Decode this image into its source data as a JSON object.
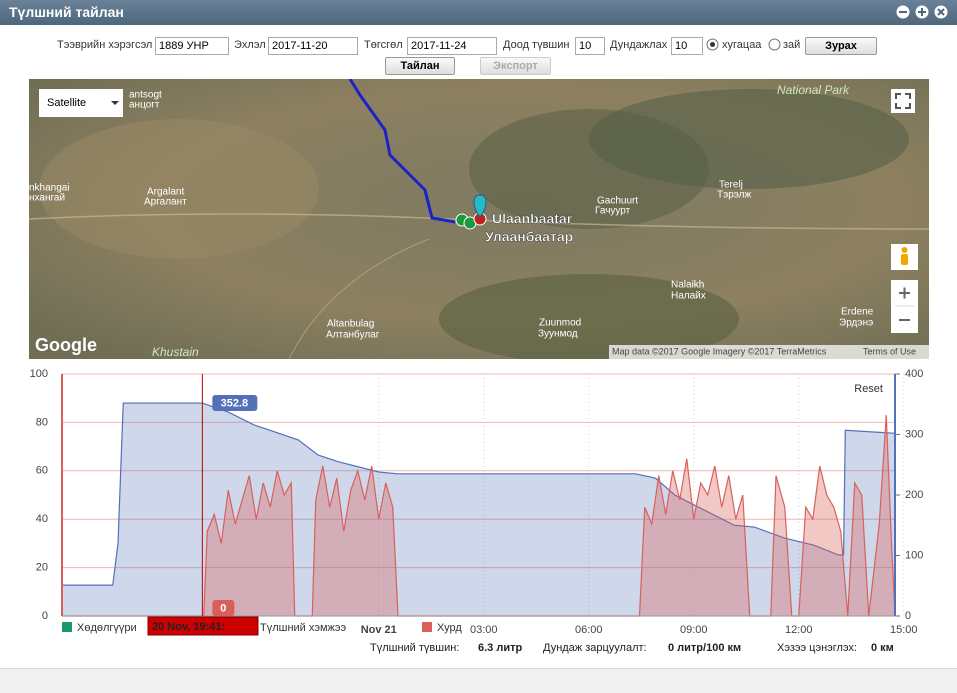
{
  "window": {
    "title": "Түлшний тайлан"
  },
  "form": {
    "vehicle_label": "Тээврийн хэрэгсэл",
    "vehicle": "1889 УНР",
    "start_label": "Эхлэл",
    "start": "2017-11-20",
    "end_label": "Төгсгөл",
    "end": "2017-11-24",
    "min_label": "Доод түвшин",
    "min": "10",
    "avg_label": "Дундажлах",
    "avg": "10",
    "radio_time": "хугацаа",
    "radio_dist": "зай",
    "draw_button": "Зурах",
    "report_button": "Тайлан",
    "export_button": "Экспорт"
  },
  "map": {
    "map_type": "Satellite",
    "labels": [
      "antsogt",
      "анцогт",
      "nkhangai",
      "нхангай",
      "Argalant",
      "Аргалант",
      "Ulaanbaatar",
      "Улаанбаатар",
      "Gachuurt",
      "Гачуурт",
      "Terelj",
      "Тэрэлж",
      "Nalaikh",
      "Налайх",
      "Erdene",
      "Эрдэнэ",
      "Altanbulag",
      "Алтанбулаг",
      "Zuunmod",
      "Зуунмод",
      "Khustain",
      "National Park"
    ],
    "logo": "Google",
    "attribution": "Map data ©2017 Google Imagery ©2017 TerraMetrics",
    "terms": "Terms of Use"
  },
  "chart_data": {
    "type": "line",
    "reset": "Reset",
    "xlim": [
      -9.05,
      14.75
    ],
    "xticks": [
      {
        "value": 0,
        "label": "Nov 21"
      },
      {
        "value": 3,
        "label": "03:00"
      },
      {
        "value": 6,
        "label": "06:00"
      },
      {
        "value": 9,
        "label": "09:00"
      },
      {
        "value": 12,
        "label": "12:00"
      },
      {
        "value": 15,
        "label": "15:00"
      }
    ],
    "ylim": [
      0,
      100
    ],
    "yticks": [
      0,
      20,
      40,
      60,
      80,
      100
    ],
    "y2lim": [
      0,
      400
    ],
    "y2ticks": [
      0,
      100,
      200,
      300,
      400
    ],
    "grid": true,
    "crosshair": -5.04,
    "tooltip": {
      "time": "20 Nov, 19:41:",
      "fuel": "352.8",
      "speed": "0"
    },
    "series": [
      {
        "name": "Хөдөлгүүри",
        "color": "#1a9a6a",
        "x": [],
        "values": []
      },
      {
        "name": "Түлшний хэмжээ",
        "color": "#5470b8",
        "axis": "y2",
        "x": [
          -9.05,
          -7.6,
          -7.45,
          -7.3,
          -5.04,
          -4.3,
          -3.57,
          -2.3,
          -1.73,
          -1.16,
          0,
          0.54,
          7.33,
          7.9,
          8.46,
          9.03,
          10.16,
          10.73,
          11.58,
          12.43,
          13.13,
          13.28,
          13.33,
          14.75
        ],
        "values": [
          51,
          51,
          120,
          352,
          352,
          337,
          316,
          291,
          266,
          255,
          238,
          235,
          235,
          228,
          200,
          183,
          150,
          147,
          129,
          117,
          101,
          101,
          307,
          302
        ]
      },
      {
        "name": "Хурд",
        "color": "#d9605a",
        "x": [
          -9.05,
          -5.0,
          -4.9,
          -4.7,
          -4.5,
          -4.3,
          -4.1,
          -3.9,
          -3.7,
          -3.5,
          -3.3,
          -3.1,
          -2.9,
          -2.7,
          -2.5,
          -2.4,
          -1.9,
          -1.8,
          -1.6,
          -1.4,
          -1.2,
          -1.0,
          -0.8,
          -0.6,
          -0.4,
          -0.2,
          0.0,
          0.2,
          0.4,
          0.55,
          7.45,
          7.6,
          7.8,
          8.0,
          8.2,
          8.4,
          8.6,
          8.8,
          9.0,
          9.2,
          9.4,
          9.6,
          9.8,
          10.0,
          10.2,
          10.4,
          10.6,
          11.2,
          11.35,
          11.6,
          11.8,
          12.0,
          12.2,
          12.4,
          12.6,
          12.8,
          13.0,
          13.2,
          13.4,
          13.6,
          13.8,
          14.0,
          14.3,
          14.5,
          14.65,
          14.75
        ],
        "values": [
          0,
          0,
          35,
          42,
          30,
          52,
          38,
          48,
          58,
          40,
          55,
          45,
          60,
          50,
          55,
          0,
          0,
          48,
          62,
          45,
          57,
          35,
          52,
          60,
          48,
          62,
          40,
          55,
          45,
          0,
          0,
          45,
          38,
          58,
          42,
          60,
          48,
          65,
          40,
          55,
          50,
          62,
          45,
          58,
          40,
          50,
          0,
          0,
          58,
          45,
          0,
          0,
          45,
          40,
          62,
          50,
          45,
          35,
          0,
          55,
          50,
          0,
          38,
          83,
          30,
          0
        ]
      }
    ]
  },
  "footer": {
    "level_label": "Түлшний түвшин:",
    "level": "6.3 литр",
    "usage_label": "Дундаж зарцуулалт:",
    "usage": "0 литр/100 км",
    "refuel_label": "Хэзээ цэнэглэх:",
    "refuel": "0 км"
  }
}
